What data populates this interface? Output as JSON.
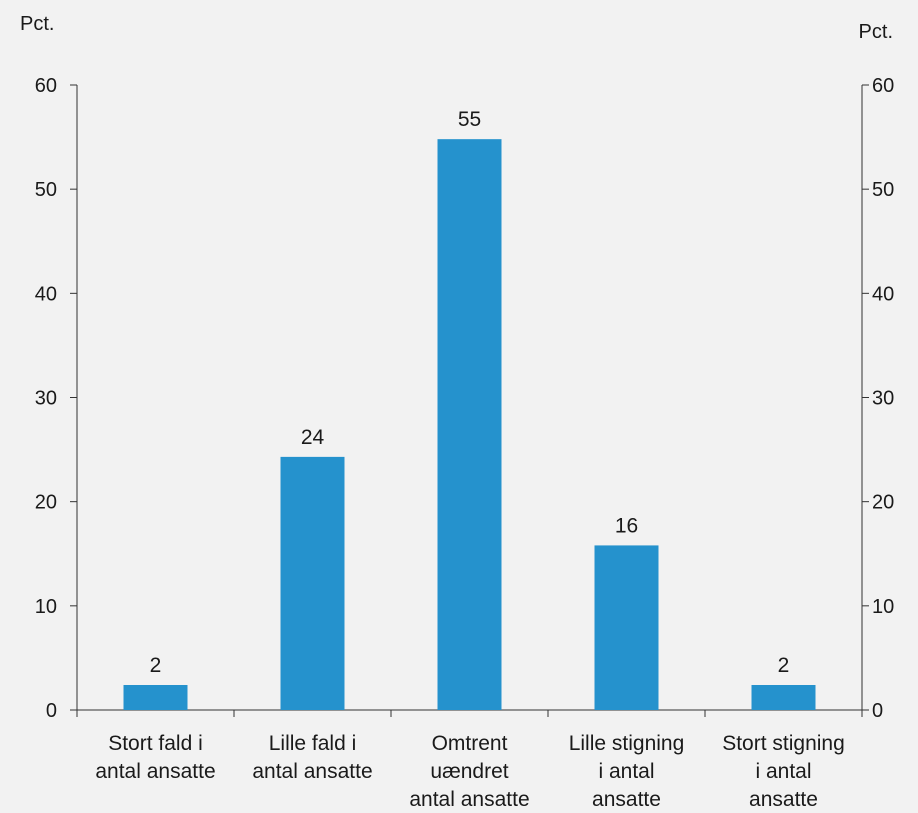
{
  "chart_data": {
    "type": "bar",
    "categories": [
      [
        "Stort fald i",
        "antal ansatte"
      ],
      [
        "Lille fald i",
        "antal ansatte"
      ],
      [
        "Omtrent",
        "uændret",
        "antal ansatte"
      ],
      [
        "Lille stigning",
        "i antal",
        "ansatte"
      ],
      [
        "Stort stigning",
        "i antal",
        "ansatte"
      ]
    ],
    "values": [
      2.4,
      24.3,
      54.8,
      15.8,
      2.4
    ],
    "data_labels": [
      "2",
      "24",
      "55",
      "16",
      "2"
    ],
    "ylim": [
      0,
      60
    ],
    "yticks": [
      0,
      10,
      20,
      30,
      40,
      50,
      60
    ],
    "y_unit_left": "Pct.",
    "y_unit_right": "Pct.",
    "bar_color": "#2592cd",
    "background": "#f2f2f2",
    "grid": false
  }
}
